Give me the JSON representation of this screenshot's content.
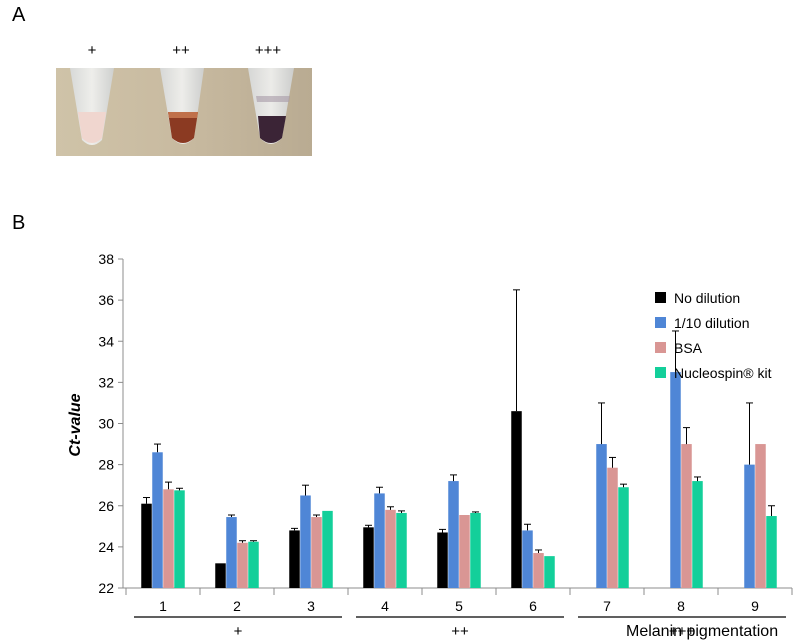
{
  "panel_a": {
    "letter": "A",
    "tube_labels": [
      "+",
      "++",
      "+++"
    ]
  },
  "panel_b": {
    "letter": "B"
  },
  "chart_data": {
    "type": "bar",
    "categories": [
      "1",
      "2",
      "3",
      "4",
      "5",
      "6",
      "7",
      "8",
      "9"
    ],
    "groups": [
      {
        "label": "+",
        "categories": [
          "1",
          "2",
          "3"
        ]
      },
      {
        "label": "++",
        "categories": [
          "4",
          "5",
          "6"
        ]
      },
      {
        "label": "+++",
        "categories": [
          "7",
          "8",
          "9"
        ]
      }
    ],
    "series": [
      {
        "name": "No dilution",
        "color": "#000000",
        "values": [
          26.1,
          23.2,
          24.8,
          24.95,
          24.7,
          30.6,
          null,
          null,
          null
        ],
        "errors": [
          0.3,
          0.0,
          0.1,
          0.1,
          0.15,
          5.9,
          null,
          null,
          null
        ]
      },
      {
        "name": "1/10 dilution",
        "color": "#4f86d6",
        "values": [
          28.6,
          25.45,
          26.5,
          26.6,
          27.2,
          24.8,
          29.0,
          32.5,
          28.0
        ],
        "errors": [
          0.4,
          0.1,
          0.5,
          0.3,
          0.3,
          0.3,
          2.0,
          2.0,
          3.0
        ]
      },
      {
        "name": "BSA",
        "color": "#d99694",
        "values": [
          26.8,
          24.2,
          25.45,
          25.8,
          25.55,
          23.7,
          27.85,
          29.0,
          29.0
        ],
        "errors": [
          0.35,
          0.1,
          0.1,
          0.15,
          0.0,
          0.15,
          0.5,
          0.8,
          0.0
        ]
      },
      {
        "name": "Nucleospin® kit",
        "color": "#13cf9a",
        "values": [
          26.75,
          24.25,
          25.75,
          25.65,
          25.65,
          23.55,
          26.9,
          27.2,
          25.5
        ],
        "errors": [
          0.1,
          0.05,
          0.0,
          0.1,
          0.05,
          0.0,
          0.15,
          0.2,
          0.5
        ]
      }
    ],
    "title": "",
    "ylabel": "Ct-value",
    "xlabel": "Melanin pigmentation",
    "ylim": [
      22,
      38
    ],
    "yticks": [
      22,
      24,
      26,
      28,
      30,
      32,
      34,
      36,
      38
    ],
    "grid": false,
    "legend_position": "right"
  }
}
